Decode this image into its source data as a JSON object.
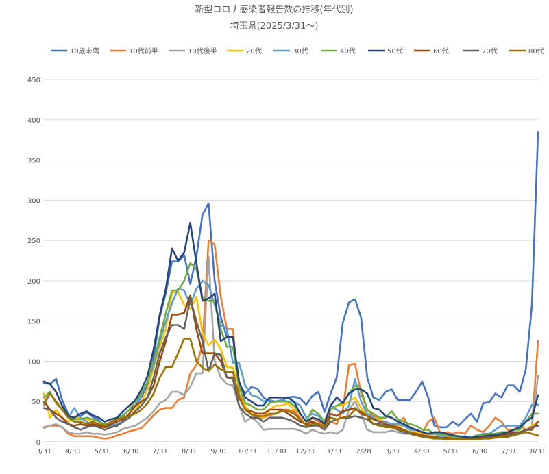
{
  "chart_data": {
    "type": "line",
    "title": "新型コロナ感染者報告数の推移(年代別)",
    "subtitle": "埼玉県(2025/3/31～)",
    "xlabel": "",
    "ylabel": "",
    "ylim": [
      0,
      450
    ],
    "yticks": [
      0,
      50,
      100,
      150,
      200,
      250,
      300,
      350,
      400,
      450
    ],
    "xticks": [
      "3/31",
      "4/30",
      "5/31",
      "6/30",
      "7/31",
      "8/31",
      "9/30",
      "10/31",
      "11/30",
      "12/31",
      "1/31",
      "2/28",
      "3/31",
      "4/30",
      "5/31",
      "6/30",
      "7/31",
      "8/31"
    ],
    "grid": "horizontal",
    "legend_position": "top",
    "x_start": "2025-03-31",
    "x_step": "weekly",
    "series": [
      {
        "name": "10歳未満",
        "color": "#4472C4",
        "values": [
          73,
          72,
          78,
          52,
          34,
          28,
          32,
          37,
          31,
          27,
          19,
          20,
          28,
          33,
          40,
          45,
          56,
          70,
          105,
          155,
          185,
          224,
          224,
          232,
          196,
          230,
          282,
          296,
          200,
          155,
          130,
          130,
          72,
          60,
          68,
          66,
          55,
          50,
          50,
          52,
          55,
          56,
          54,
          46,
          57,
          62,
          37,
          60,
          80,
          148,
          173,
          177,
          154,
          80,
          55,
          52,
          62,
          65,
          52,
          52,
          52,
          62,
          75,
          55,
          20,
          18,
          18,
          25,
          20,
          28,
          35,
          25,
          48,
          49,
          60,
          55,
          70,
          70,
          62,
          90,
          170,
          385
        ]
      },
      {
        "name": "10代前半",
        "color": "#ED7D31",
        "values": [
          18,
          20,
          20,
          18,
          10,
          7,
          7,
          7,
          7,
          5,
          4,
          5,
          8,
          10,
          13,
          15,
          17,
          25,
          33,
          40,
          42,
          42,
          52,
          55,
          85,
          95,
          120,
          250,
          245,
          180,
          140,
          140,
          60,
          42,
          35,
          30,
          30,
          33,
          35,
          40,
          40,
          38,
          30,
          20,
          30,
          25,
          20,
          25,
          22,
          40,
          95,
          97,
          60,
          40,
          32,
          30,
          20,
          22,
          20,
          30,
          15,
          12,
          10,
          25,
          30,
          10,
          12,
          10,
          12,
          10,
          20,
          15,
          12,
          20,
          30,
          25,
          15,
          15,
          20,
          15,
          20,
          125
        ]
      },
      {
        "name": "10代後半",
        "color": "#A5A5A5",
        "values": [
          17,
          20,
          22,
          18,
          12,
          10,
          10,
          12,
          10,
          10,
          9,
          10,
          12,
          16,
          18,
          20,
          25,
          30,
          38,
          48,
          52,
          62,
          62,
          58,
          68,
          85,
          85,
          230,
          100,
          80,
          72,
          70,
          45,
          25,
          30,
          25,
          15,
          16,
          16,
          16,
          16,
          16,
          14,
          10,
          15,
          12,
          10,
          12,
          10,
          15,
          40,
          50,
          35,
          15,
          12,
          12,
          12,
          14,
          12,
          10,
          10,
          8,
          8,
          8,
          10,
          8,
          6,
          5,
          5,
          4,
          5,
          6,
          6,
          8,
          10,
          12,
          12,
          12,
          10,
          15,
          20,
          82
        ]
      },
      {
        "name": "20代",
        "color": "#FFC000",
        "values": [
          60,
          30,
          40,
          30,
          25,
          30,
          30,
          28,
          25,
          20,
          15,
          20,
          22,
          25,
          30,
          40,
          50,
          65,
          92,
          118,
          140,
          185,
          186,
          170,
          165,
          180,
          135,
          120,
          127,
          115,
          93,
          92,
          70,
          45,
          35,
          33,
          30,
          40,
          45,
          45,
          48,
          40,
          35,
          25,
          30,
          28,
          25,
          40,
          45,
          45,
          50,
          55,
          42,
          35,
          30,
          28,
          25,
          22,
          20,
          20,
          15,
          12,
          10,
          8,
          7,
          6,
          5,
          5,
          5,
          5,
          5,
          5,
          5,
          6,
          8,
          8,
          10,
          10,
          12,
          14,
          20,
          25
        ]
      },
      {
        "name": "30代",
        "color": "#5B9BD5",
        "values": [
          45,
          60,
          50,
          40,
          30,
          42,
          30,
          25,
          20,
          20,
          18,
          20,
          22,
          25,
          35,
          45,
          58,
          75,
          95,
          125,
          150,
          172,
          190,
          188,
          170,
          190,
          200,
          195,
          170,
          145,
          140,
          98,
          98,
          70,
          58,
          56,
          50,
          52,
          50,
          52,
          50,
          50,
          45,
          30,
          35,
          32,
          25,
          45,
          40,
          35,
          45,
          78,
          50,
          35,
          30,
          25,
          25,
          22,
          22,
          20,
          15,
          15,
          12,
          10,
          10,
          8,
          8,
          6,
          6,
          7,
          6,
          8,
          10,
          10,
          15,
          20,
          20,
          20,
          20,
          30,
          46,
          46
        ]
      },
      {
        "name": "40代",
        "color": "#70AD47",
        "values": [
          55,
          62,
          48,
          40,
          30,
          28,
          28,
          30,
          28,
          25,
          22,
          24,
          28,
          32,
          40,
          50,
          60,
          75,
          100,
          130,
          160,
          188,
          188,
          200,
          222,
          215,
          180,
          175,
          175,
          140,
          118,
          118,
          68,
          48,
          45,
          40,
          40,
          48,
          50,
          50,
          50,
          45,
          35,
          25,
          40,
          35,
          25,
          40,
          45,
          48,
          60,
          70,
          65,
          40,
          35,
          30,
          30,
          38,
          28,
          25,
          22,
          20,
          15,
          15,
          10,
          10,
          8,
          6,
          5,
          6,
          5,
          8,
          8,
          10,
          10,
          12,
          12,
          15,
          15,
          25,
          35,
          35
        ]
      },
      {
        "name": "50代",
        "color": "#264478",
        "values": [
          75,
          72,
          62,
          45,
          32,
          30,
          35,
          38,
          33,
          30,
          25,
          28,
          30,
          38,
          45,
          52,
          65,
          82,
          115,
          158,
          190,
          240,
          225,
          235,
          272,
          222,
          175,
          178,
          184,
          125,
          130,
          130,
          75,
          55,
          50,
          45,
          45,
          55,
          55,
          55,
          55,
          50,
          35,
          25,
          30,
          28,
          22,
          45,
          55,
          48,
          60,
          65,
          65,
          60,
          42,
          40,
          32,
          30,
          25,
          22,
          18,
          15,
          12,
          10,
          12,
          12,
          10,
          8,
          7,
          6,
          5,
          6,
          7,
          8,
          8,
          10,
          12,
          15,
          18,
          25,
          30,
          58
        ]
      },
      {
        "name": "60代",
        "color": "#9E480E",
        "values": [
          50,
          40,
          35,
          30,
          22,
          20,
          22,
          20,
          22,
          20,
          18,
          22,
          25,
          28,
          35,
          45,
          50,
          55,
          70,
          100,
          125,
          158,
          158,
          160,
          182,
          140,
          110,
          110,
          110,
          100,
          80,
          80,
          55,
          40,
          38,
          35,
          35,
          40,
          40,
          40,
          35,
          30,
          25,
          22,
          25,
          22,
          18,
          35,
          32,
          38,
          40,
          42,
          35,
          32,
          28,
          25,
          22,
          20,
          18,
          15,
          12,
          10,
          8,
          7,
          6,
          5,
          5,
          4,
          4,
          3,
          4,
          4,
          5,
          6,
          6,
          8,
          10,
          12,
          12,
          15,
          15,
          25
        ]
      },
      {
        "name": "70代",
        "color": "#636363",
        "values": [
          42,
          40,
          30,
          25,
          22,
          18,
          15,
          18,
          20,
          18,
          15,
          18,
          20,
          25,
          30,
          38,
          45,
          55,
          80,
          110,
          130,
          145,
          145,
          140,
          178,
          150,
          125,
          88,
          110,
          108,
          80,
          78,
          45,
          35,
          30,
          30,
          25,
          30,
          30,
          30,
          28,
          25,
          20,
          18,
          20,
          20,
          15,
          25,
          28,
          30,
          30,
          32,
          30,
          28,
          22,
          22,
          20,
          18,
          15,
          12,
          10,
          8,
          7,
          6,
          5,
          5,
          4,
          3,
          3,
          3,
          3,
          4,
          4,
          5,
          5,
          6,
          8,
          10,
          12,
          14,
          18,
          20
        ]
      },
      {
        "name": "80代",
        "color": "#997300",
        "values": [
          48,
          60,
          50,
          40,
          30,
          25,
          25,
          22,
          25,
          22,
          20,
          25,
          28,
          30,
          32,
          35,
          40,
          48,
          60,
          80,
          93,
          93,
          110,
          128,
          128,
          100,
          92,
          88,
          96,
          90,
          87,
          87,
          56,
          40,
          34,
          32,
          32,
          35,
          35,
          38,
          38,
          35,
          28,
          20,
          22,
          22,
          18,
          30,
          28,
          30,
          32,
          40,
          38,
          32,
          22,
          20,
          18,
          18,
          16,
          14,
          12,
          8,
          6,
          5,
          4,
          4,
          3,
          3,
          3,
          3,
          3,
          3,
          4,
          4,
          5,
          6,
          6,
          8,
          10,
          12,
          10,
          8
        ]
      }
    ]
  }
}
